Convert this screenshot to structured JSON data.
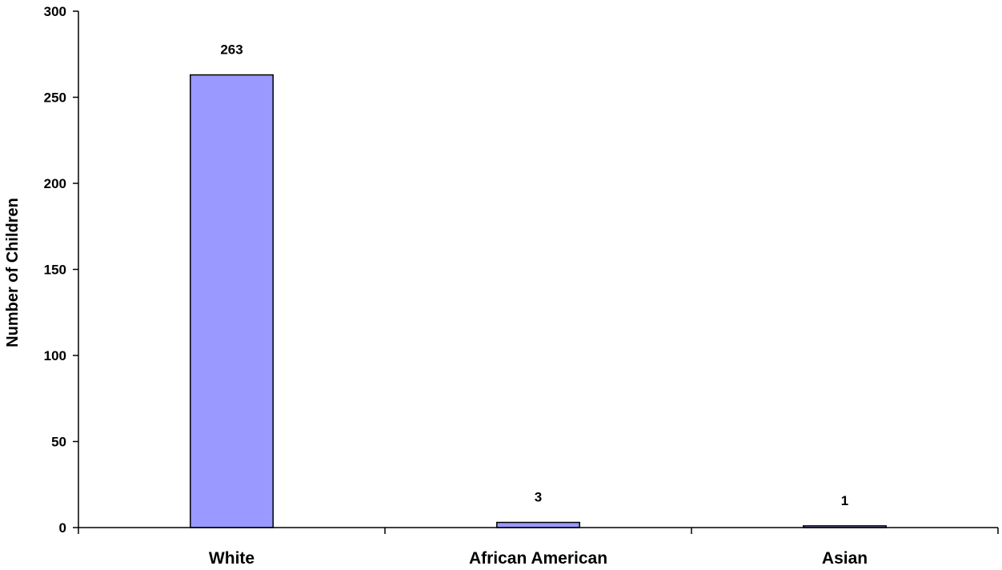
{
  "chart_data": {
    "type": "bar",
    "categories": [
      "White",
      "African American",
      "Asian"
    ],
    "values": [
      263,
      3,
      1
    ],
    "data_labels": [
      "263",
      "3",
      "1"
    ],
    "title": "",
    "xlabel": "",
    "ylabel": "Number of Children",
    "ylim": [
      0,
      300
    ],
    "yticks": [
      0,
      50,
      100,
      150,
      200,
      250,
      300
    ],
    "ytick_labels": [
      "0",
      "50",
      "100",
      "150",
      "200",
      "250",
      "300"
    ],
    "grid": false,
    "legend": "none",
    "bar_color": "#9999ff"
  }
}
